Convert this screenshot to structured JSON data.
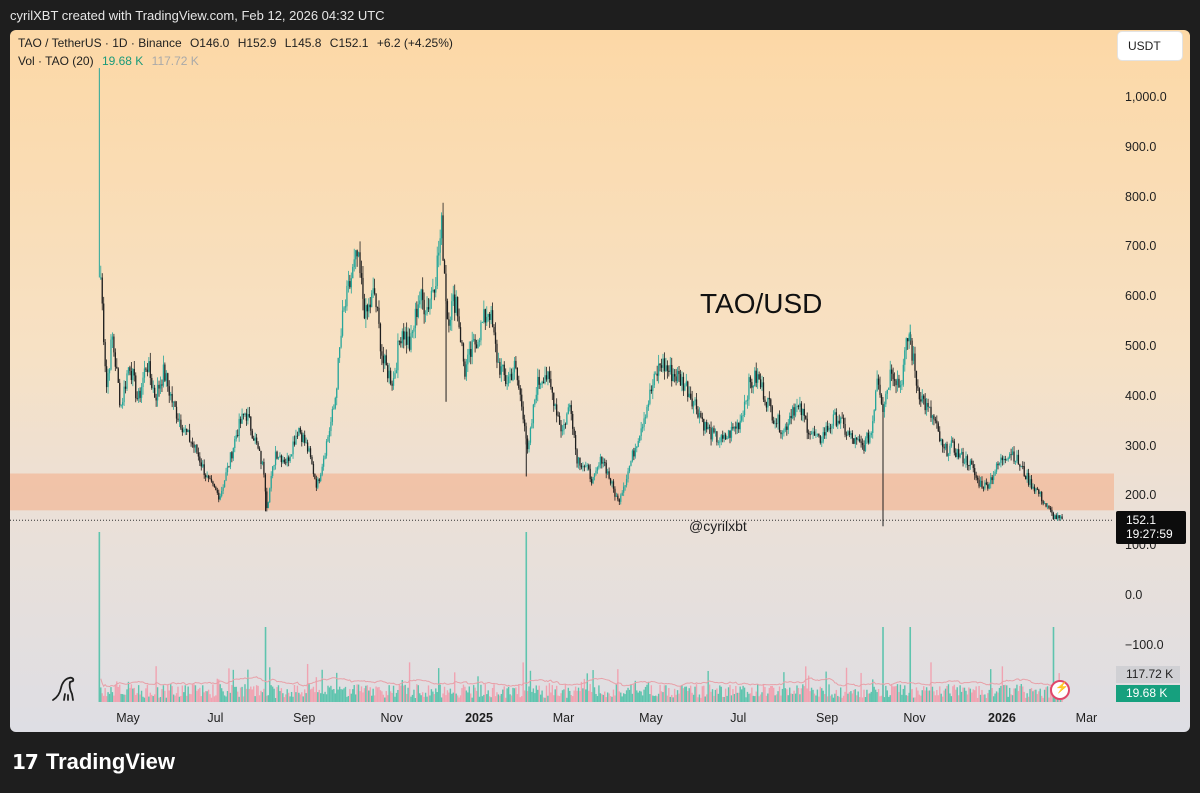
{
  "header": {
    "text": "cyrilXBT created with TradingView.com, Feb 12, 2026 04:32 UTC"
  },
  "legend": {
    "symbol": "TAO / TetherUS · 1D · Binance",
    "open": "O146.0",
    "high": "H152.9",
    "low": "L145.8",
    "close": "C152.1",
    "change": "+6.2 (+4.25%)",
    "vol_label": "Vol · TAO (20)",
    "vol_value": "19.68 K",
    "vol_ma": "117.72 K"
  },
  "currency_button": "USDT",
  "annotation": "TAO/USD",
  "watermark_handle": "@cyrilxbt",
  "price_tag": {
    "price": "152.1",
    "countdown": "19:27:59"
  },
  "volume_tags": {
    "ma": "117.72 K",
    "current": "19.68 K"
  },
  "y_axis": [
    "1,000.0",
    "900.0",
    "800.0",
    "700.0",
    "600.0",
    "500.0",
    "400.0",
    "300.0",
    "200.0",
    "100.0",
    "0.0",
    "−100.0"
  ],
  "x_axis": [
    {
      "label": "May",
      "bold": false
    },
    {
      "label": "Jul",
      "bold": false
    },
    {
      "label": "Sep",
      "bold": false
    },
    {
      "label": "Nov",
      "bold": false
    },
    {
      "label": "2025",
      "bold": true
    },
    {
      "label": "Mar",
      "bold": false
    },
    {
      "label": "May",
      "bold": false
    },
    {
      "label": "Jul",
      "bold": false
    },
    {
      "label": "Sep",
      "bold": false
    },
    {
      "label": "Nov",
      "bold": false
    },
    {
      "label": "2026",
      "bold": true
    },
    {
      "label": "Mar",
      "bold": false
    }
  ],
  "footer": {
    "brand": "TradingView"
  },
  "colors": {
    "up": "#26a69a",
    "down": "#1f1f1f",
    "zone": "#f2b999",
    "vol_up": "#5ec4ae",
    "vol_down": "#f0a3b1",
    "volume_ma": "#e8a0a8"
  },
  "chart_data": {
    "type": "candlestick",
    "unit": "USDT",
    "y_scale": "linear",
    "ylim": [
      -140,
      1060
    ],
    "support_zone": [
      172,
      246
    ],
    "current_price": 152.1,
    "price_path": [
      [
        "2024-04-12",
        640
      ],
      [
        "2024-04-16",
        420
      ],
      [
        "2024-04-20",
        520
      ],
      [
        "2024-04-26",
        380
      ],
      [
        "2024-05-02",
        470
      ],
      [
        "2024-05-08",
        390
      ],
      [
        "2024-05-14",
        470
      ],
      [
        "2024-05-20",
        400
      ],
      [
        "2024-05-26",
        450
      ],
      [
        "2024-06-02",
        380
      ],
      [
        "2024-06-10",
        330
      ],
      [
        "2024-06-18",
        290
      ],
      [
        "2024-06-26",
        230
      ],
      [
        "2024-07-04",
        200
      ],
      [
        "2024-07-10",
        260
      ],
      [
        "2024-07-16",
        330
      ],
      [
        "2024-07-22",
        370
      ],
      [
        "2024-07-28",
        320
      ],
      [
        "2024-08-04",
        250
      ],
      [
        "2024-08-06",
        180
      ],
      [
        "2024-08-12",
        290
      ],
      [
        "2024-08-20",
        270
      ],
      [
        "2024-08-28",
        340
      ],
      [
        "2024-09-04",
        290
      ],
      [
        "2024-09-10",
        220
      ],
      [
        "2024-09-16",
        300
      ],
      [
        "2024-09-22",
        380
      ],
      [
        "2024-09-28",
        560
      ],
      [
        "2024-10-04",
        640
      ],
      [
        "2024-10-08",
        680
      ],
      [
        "2024-10-14",
        560
      ],
      [
        "2024-10-20",
        610
      ],
      [
        "2024-10-26",
        470
      ],
      [
        "2024-11-02",
        430
      ],
      [
        "2024-11-08",
        540
      ],
      [
        "2024-11-14",
        500
      ],
      [
        "2024-11-20",
        600
      ],
      [
        "2024-11-26",
        580
      ],
      [
        "2024-12-02",
        650
      ],
      [
        "2024-12-06",
        740
      ],
      [
        "2024-12-10",
        560
      ],
      [
        "2024-12-16",
        600
      ],
      [
        "2024-12-22",
        450
      ],
      [
        "2024-12-28",
        500
      ],
      [
        "2025-01-04",
        550
      ],
      [
        "2025-01-08",
        580
      ],
      [
        "2025-01-14",
        470
      ],
      [
        "2025-01-20",
        430
      ],
      [
        "2025-01-26",
        460
      ],
      [
        "2025-02-02",
        350
      ],
      [
        "2025-02-04",
        280
      ],
      [
        "2025-02-10",
        420
      ],
      [
        "2025-02-16",
        450
      ],
      [
        "2025-02-22",
        400
      ],
      [
        "2025-02-28",
        330
      ],
      [
        "2025-03-06",
        390
      ],
      [
        "2025-03-10",
        280
      ],
      [
        "2025-03-16",
        260
      ],
      [
        "2025-03-22",
        230
      ],
      [
        "2025-03-28",
        280
      ],
      [
        "2025-04-04",
        220
      ],
      [
        "2025-04-08",
        190
      ],
      [
        "2025-04-14",
        240
      ],
      [
        "2025-04-20",
        300
      ],
      [
        "2025-04-26",
        360
      ],
      [
        "2025-05-02",
        420
      ],
      [
        "2025-05-08",
        470
      ],
      [
        "2025-05-14",
        450
      ],
      [
        "2025-05-20",
        440
      ],
      [
        "2025-05-26",
        420
      ],
      [
        "2025-06-02",
        380
      ],
      [
        "2025-06-08",
        340
      ],
      [
        "2025-06-14",
        320
      ],
      [
        "2025-06-20",
        310
      ],
      [
        "2025-06-26",
        330
      ],
      [
        "2025-07-02",
        350
      ],
      [
        "2025-07-08",
        420
      ],
      [
        "2025-07-14",
        440
      ],
      [
        "2025-07-20",
        400
      ],
      [
        "2025-07-26",
        360
      ],
      [
        "2025-08-02",
        330
      ],
      [
        "2025-08-08",
        380
      ],
      [
        "2025-08-14",
        370
      ],
      [
        "2025-08-20",
        330
      ],
      [
        "2025-08-26",
        310
      ],
      [
        "2025-09-02",
        340
      ],
      [
        "2025-09-08",
        360
      ],
      [
        "2025-09-14",
        330
      ],
      [
        "2025-09-20",
        310
      ],
      [
        "2025-09-26",
        300
      ],
      [
        "2025-10-02",
        330
      ],
      [
        "2025-10-06",
        450
      ],
      [
        "2025-10-10",
        380
      ],
      [
        "2025-10-16",
        460
      ],
      [
        "2025-10-22",
        420
      ],
      [
        "2025-10-28",
        530
      ],
      [
        "2025-11-03",
        420
      ],
      [
        "2025-11-09",
        380
      ],
      [
        "2025-11-15",
        350
      ],
      [
        "2025-11-21",
        290
      ],
      [
        "2025-11-27",
        300
      ],
      [
        "2025-12-03",
        280
      ],
      [
        "2025-12-09",
        270
      ],
      [
        "2025-12-15",
        230
      ],
      [
        "2025-12-21",
        220
      ],
      [
        "2025-12-27",
        250
      ],
      [
        "2026-01-02",
        280
      ],
      [
        "2026-01-08",
        290
      ],
      [
        "2026-01-14",
        260
      ],
      [
        "2026-01-20",
        230
      ],
      [
        "2026-01-26",
        210
      ],
      [
        "2026-02-01",
        180
      ],
      [
        "2026-02-06",
        160
      ],
      [
        "2026-02-12",
        152
      ]
    ],
    "notable_wicks": [
      {
        "date": "2024-04-11",
        "high": 1060
      },
      {
        "date": "2024-08-05",
        "low": 170
      },
      {
        "date": "2024-12-09",
        "low": 390
      },
      {
        "date": "2025-02-03",
        "low": 240
      },
      {
        "date": "2025-10-10",
        "low": 140
      },
      {
        "date": "2025-10-29",
        "high": 545
      }
    ],
    "volume_spikes": [
      {
        "date": "2024-04-11",
        "value": "very high"
      },
      {
        "date": "2024-08-05",
        "value": "high"
      },
      {
        "date": "2025-02-03",
        "value": "very high"
      },
      {
        "date": "2025-10-10",
        "value": "high"
      },
      {
        "date": "2025-10-29",
        "value": "high"
      },
      {
        "date": "2026-02-06",
        "value": "high"
      }
    ]
  }
}
